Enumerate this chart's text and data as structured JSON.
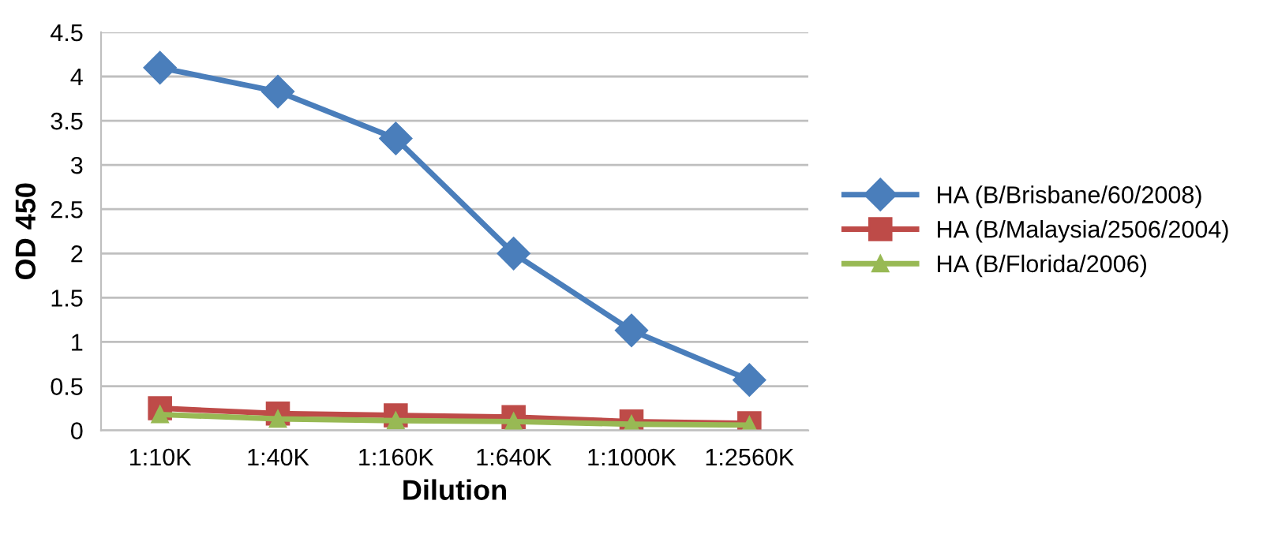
{
  "chart_data": {
    "type": "line",
    "xlabel": "Dilution",
    "ylabel": "OD 450",
    "categories": [
      "1:10K",
      "1:40K",
      "1:160K",
      "1:640K",
      "1:1000K",
      "1:2560K"
    ],
    "series": [
      {
        "name": "HA (B/Brisbane/60/2008)",
        "color": "#4a7ebb",
        "marker": "diamond",
        "values": [
          4.1,
          3.83,
          3.3,
          2.0,
          1.13,
          0.57
        ]
      },
      {
        "name": "HA (B/Malaysia/2506/2004)",
        "color": "#be4b48",
        "marker": "square",
        "values": [
          0.25,
          0.19,
          0.17,
          0.15,
          0.1,
          0.08
        ]
      },
      {
        "name": "HA (B/Florida/2006)",
        "color": "#98b954",
        "marker": "triangle",
        "values": [
          0.18,
          0.13,
          0.11,
          0.1,
          0.07,
          0.06
        ]
      }
    ],
    "ylim": [
      0,
      4.5
    ],
    "yticks": [
      0,
      0.5,
      1,
      1.5,
      2,
      2.5,
      3,
      3.5,
      4,
      4.5
    ],
    "grid": "y",
    "legend": "right"
  }
}
